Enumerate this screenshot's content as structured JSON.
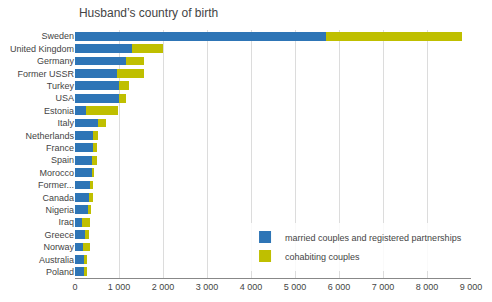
{
  "chart_data": {
    "type": "bar",
    "orientation": "horizontal",
    "stacked": true,
    "title": "Husband’s country of birth",
    "categories": [
      "Sweden",
      "United Kingdom",
      "Germany",
      "Former USSR",
      "Turkey",
      "USA",
      "Estonia",
      "Italy",
      "Netherlands",
      "France",
      "Spain",
      "Morocco",
      "Former...",
      "Canada",
      "Nigeria",
      "Iraq",
      "Greece",
      "Norway",
      "Australia",
      "Poland"
    ],
    "series": [
      {
        "name": "married couples and registered partnerships",
        "color": "#2E75B6",
        "values": [
          5700,
          1300,
          1150,
          950,
          1000,
          1000,
          250,
          520,
          420,
          400,
          390,
          380,
          340,
          320,
          300,
          170,
          230,
          190,
          210,
          200
        ]
      },
      {
        "name": "cohabiting couples",
        "color": "#BFBF00",
        "values": [
          3100,
          700,
          420,
          620,
          220,
          170,
          720,
          180,
          100,
          110,
          110,
          60,
          80,
          100,
          70,
          160,
          80,
          145,
          70,
          70
        ]
      }
    ],
    "xlim": [
      0,
      9000
    ],
    "xticks": [
      0,
      {
        "value": 1000,
        "label": "1 000"
      },
      {
        "value": 2000,
        "label": "2 000"
      },
      {
        "value": 3000,
        "label": "3 000"
      },
      {
        "value": 4000,
        "label": "4 000"
      },
      {
        "value": 5000,
        "label": "5 000"
      },
      {
        "value": 6000,
        "label": "6 000"
      },
      {
        "value": 7000,
        "label": "7 000"
      },
      {
        "value": 8000,
        "label": "8 000"
      },
      {
        "value": 9000,
        "label": "9 000"
      }
    ],
    "grid": true,
    "legend": "lower right"
  }
}
